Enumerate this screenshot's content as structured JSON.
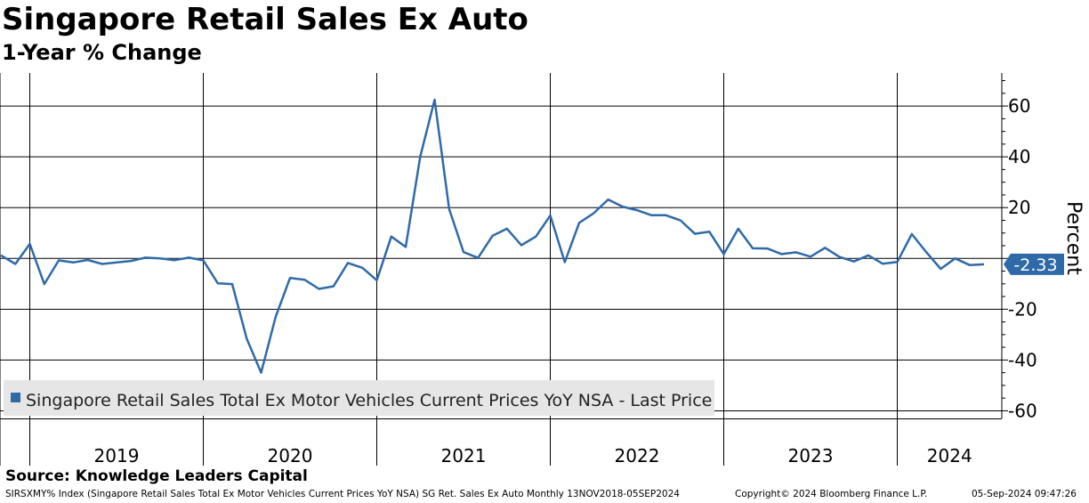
{
  "title": "Singapore Retail Sales Ex Auto",
  "subtitle": "1-Year % Change",
  "source": "Source: Knowledge Leaders Capital",
  "footer": {
    "left": "SIRSXMY% Index (Singapore Retail Sales Total Ex Motor Vehicles Current Prices YoY NSA) SG Ret. Sales Ex Auto  Monthly 13NOV2018-05SEP2024",
    "middle": "Copyright© 2024 Bloomberg Finance L.P.",
    "right": "05-Sep-2024 09:47:26"
  },
  "colors": {
    "line": "#2f6aa8",
    "grid": "#000000",
    "legend_bg": "#e6e6e6",
    "label_bg": "#2f6aa8"
  },
  "chart_data": {
    "type": "line",
    "ylabel": "Percent",
    "ylim": [
      -63,
      73
    ],
    "yticks": [
      60,
      40,
      20,
      0,
      -20,
      -40,
      -60
    ],
    "ytick_labels": [
      "60",
      "40",
      "20",
      "",
      "-20",
      "-40",
      "-60"
    ],
    "xlim": [
      "2018-11",
      "2024-09"
    ],
    "year_labels": [
      "2019",
      "2020",
      "2021",
      "2022",
      "2023",
      "2024"
    ],
    "legend": "Singapore Retail Sales Total Ex Motor Vehicles Current Prices YoY NSA - Last Price",
    "last_value_label": "-2.33",
    "last_value": -2.33,
    "series": [
      {
        "name": "Singapore Retail Sales Total Ex Motor Vehicles Current Prices YoY NSA - Last Price",
        "x": [
          "2018-11",
          "2018-12",
          "2019-01",
          "2019-02",
          "2019-03",
          "2019-04",
          "2019-05",
          "2019-06",
          "2019-07",
          "2019-08",
          "2019-09",
          "2019-10",
          "2019-11",
          "2019-12",
          "2020-01",
          "2020-02",
          "2020-03",
          "2020-04",
          "2020-05",
          "2020-06",
          "2020-07",
          "2020-08",
          "2020-09",
          "2020-10",
          "2020-11",
          "2020-12",
          "2021-01",
          "2021-02",
          "2021-03",
          "2021-04",
          "2021-05",
          "2021-06",
          "2021-07",
          "2021-08",
          "2021-09",
          "2021-10",
          "2021-11",
          "2021-12",
          "2022-01",
          "2022-02",
          "2022-03",
          "2022-04",
          "2022-05",
          "2022-06",
          "2022-07",
          "2022-08",
          "2022-09",
          "2022-10",
          "2022-11",
          "2022-12",
          "2023-01",
          "2023-02",
          "2023-03",
          "2023-04",
          "2023-05",
          "2023-06",
          "2023-07",
          "2023-08",
          "2023-09",
          "2023-10",
          "2023-11",
          "2023-12",
          "2024-01",
          "2024-02",
          "2024-03",
          "2024-04",
          "2024-05",
          "2024-06",
          "2024-07"
        ],
        "values": [
          1.2,
          -2.2,
          5.7,
          -10.1,
          -0.8,
          -1.6,
          -0.6,
          -2.2,
          -1.6,
          -1.0,
          0.3,
          0.0,
          -0.7,
          0.3,
          -0.8,
          -9.8,
          -10.1,
          -31.6,
          -45.0,
          -23.0,
          -7.7,
          -8.4,
          -12.0,
          -11.0,
          -1.8,
          -3.7,
          -8.6,
          8.6,
          4.5,
          40.0,
          62.5,
          19.5,
          2.5,
          0.2,
          8.9,
          11.7,
          5.2,
          8.6,
          16.9,
          -1.5,
          14.0,
          17.8,
          23.2,
          20.4,
          19.0,
          17.0,
          17.0,
          15.0,
          9.7,
          10.5,
          1.7,
          11.7,
          4.0,
          3.9,
          1.7,
          2.4,
          0.7,
          4.2,
          0.6,
          -1.2,
          1.2,
          -2.1,
          -1.4,
          9.6,
          2.5,
          -4.1,
          0.0,
          -2.6,
          -2.33
        ]
      }
    ]
  }
}
